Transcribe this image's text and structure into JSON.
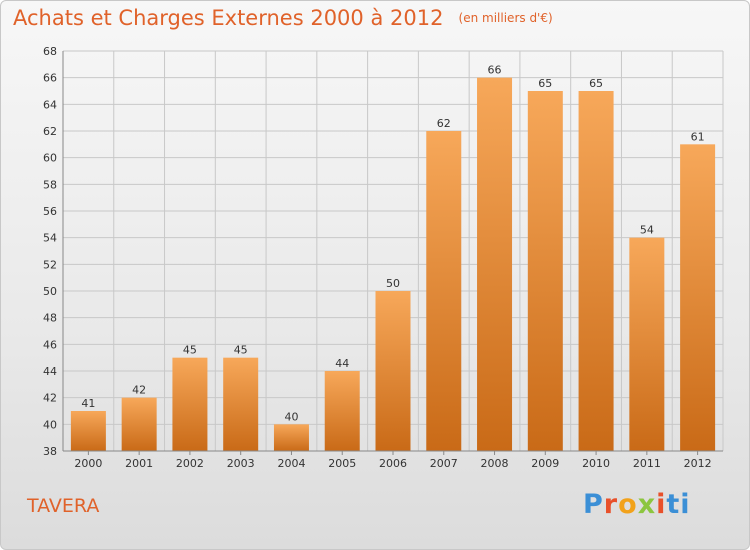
{
  "header": {
    "title": "Achats et Charges Externes 2000 à 2012",
    "subtitle": "(en milliers d'€)"
  },
  "footer": {
    "place": "TAVERA",
    "brand": [
      "P",
      "r",
      "o",
      "x",
      "i",
      "ti"
    ]
  },
  "colors": {
    "bar_light": "#f7a85a",
    "bar_dark": "#c96a17",
    "accent": "#e0622a",
    "grid": "#c8c8c8"
  },
  "chart_data": {
    "type": "bar",
    "title": "Achats et Charges Externes 2000 à 2012",
    "subtitle": "(en milliers d'€)",
    "xlabel": "",
    "ylabel": "",
    "categories": [
      "2000",
      "2001",
      "2002",
      "2003",
      "2004",
      "2005",
      "2006",
      "2007",
      "2008",
      "2009",
      "2010",
      "2011",
      "2012"
    ],
    "values": [
      41,
      42,
      45,
      45,
      40,
      44,
      50,
      62,
      66,
      65,
      65,
      54,
      61
    ],
    "ylim": [
      38,
      68
    ],
    "yticks": [
      38,
      40,
      42,
      44,
      46,
      48,
      50,
      52,
      54,
      56,
      58,
      60,
      62,
      64,
      66,
      68
    ],
    "grid": true,
    "legend": "none"
  }
}
